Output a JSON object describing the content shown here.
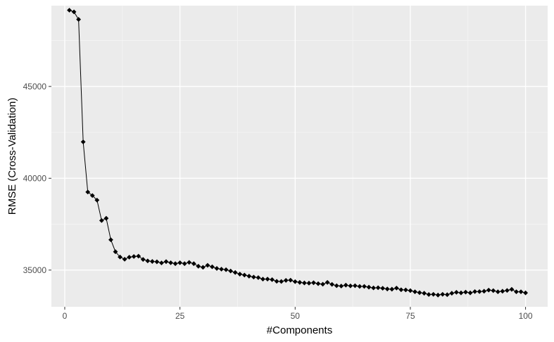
{
  "chart_data": {
    "type": "line",
    "xlabel": "#Components",
    "ylabel": "RMSE (Cross-Validation)",
    "xlim": [
      -2.9,
      104.8
    ],
    "ylim": [
      33000,
      49400
    ],
    "x_ticks": [
      0,
      25,
      50,
      75,
      100
    ],
    "x_tick_labels": [
      "0",
      "25",
      "50",
      "75",
      "100"
    ],
    "y_ticks": [
      35000,
      40000,
      45000
    ],
    "y_tick_labels": [
      "35000",
      "40000",
      "45000"
    ],
    "grid": true,
    "legend": "none",
    "colors": {
      "panel_background": "#ebebeb",
      "grid_major": "#ffffff",
      "grid_minor": "#f5f5f5",
      "line": "#000000",
      "point": "#000000"
    },
    "series": [
      {
        "marker": "diamond",
        "x": [
          1,
          2,
          3,
          4,
          5,
          6,
          7,
          8,
          9,
          10,
          11,
          12,
          13,
          14,
          15,
          16,
          17,
          18,
          19,
          20,
          21,
          22,
          23,
          24,
          25,
          26,
          27,
          28,
          29,
          30,
          31,
          32,
          33,
          34,
          35,
          36,
          37,
          38,
          39,
          40,
          41,
          42,
          43,
          44,
          45,
          46,
          47,
          48,
          49,
          50,
          51,
          52,
          53,
          54,
          55,
          56,
          57,
          58,
          59,
          60,
          61,
          62,
          63,
          64,
          65,
          66,
          67,
          68,
          69,
          70,
          71,
          72,
          73,
          74,
          75,
          76,
          77,
          78,
          79,
          80,
          81,
          82,
          83,
          84,
          85,
          86,
          87,
          88,
          89,
          90,
          91,
          92,
          93,
          94,
          95,
          96,
          97,
          98,
          99,
          100
        ],
        "values": [
          49150,
          49060,
          48650,
          41980,
          39250,
          39060,
          38810,
          37700,
          37820,
          36650,
          36000,
          35710,
          35590,
          35700,
          35740,
          35760,
          35580,
          35500,
          35470,
          35450,
          35390,
          35460,
          35400,
          35350,
          35400,
          35350,
          35420,
          35350,
          35210,
          35150,
          35260,
          35180,
          35090,
          35050,
          35020,
          34950,
          34870,
          34780,
          34730,
          34670,
          34620,
          34590,
          34510,
          34510,
          34480,
          34390,
          34380,
          34440,
          34450,
          34370,
          34330,
          34300,
          34290,
          34310,
          34260,
          34230,
          34330,
          34220,
          34150,
          34130,
          34180,
          34140,
          34150,
          34110,
          34110,
          34070,
          34030,
          34040,
          34010,
          33970,
          33960,
          34020,
          33930,
          33920,
          33880,
          33820,
          33770,
          33740,
          33670,
          33680,
          33640,
          33680,
          33660,
          33740,
          33790,
          33760,
          33800,
          33760,
          33830,
          33830,
          33850,
          33910,
          33880,
          33820,
          33850,
          33890,
          33950,
          33820,
          33820,
          33760
        ]
      }
    ]
  }
}
